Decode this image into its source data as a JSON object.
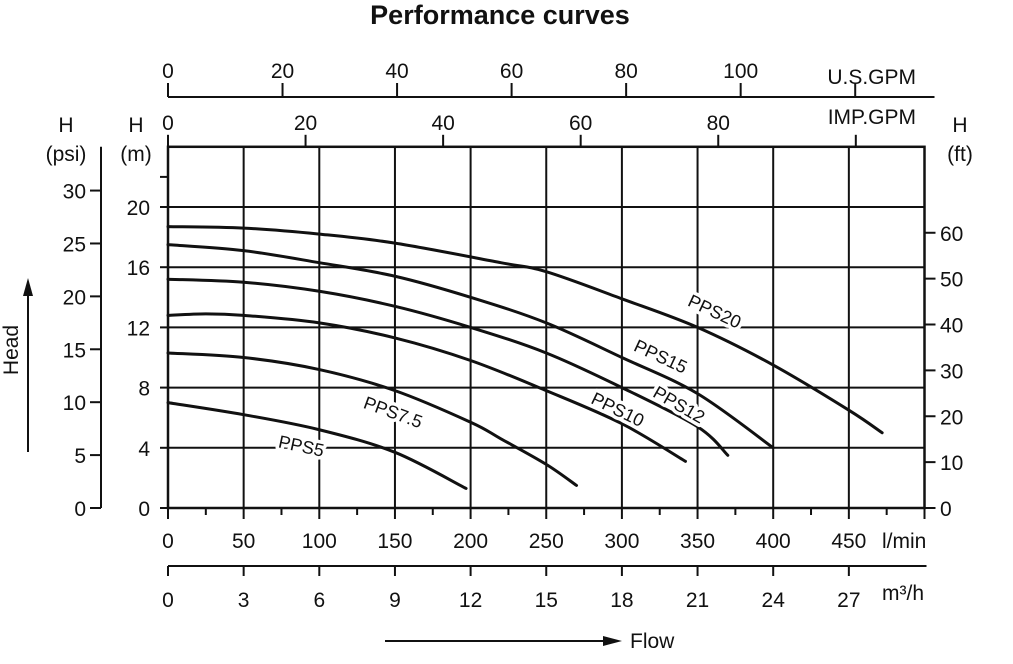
{
  "chart_data": {
    "type": "line",
    "title": "Performance curves",
    "xlabel": "Flow",
    "ylabel": "Head",
    "x_unit": "l/min",
    "xlim": [
      0,
      500
    ],
    "ylim": [
      0,
      24
    ],
    "grid": true,
    "x_ticks": [
      0,
      50,
      100,
      150,
      200,
      250,
      300,
      350,
      400,
      450
    ],
    "y_ticks_m": [
      0,
      4,
      8,
      12,
      16,
      20
    ],
    "axes": {
      "psi": {
        "label": "H",
        "unit": "(psi)",
        "ticks": [
          0,
          5,
          10,
          15,
          20,
          25,
          30
        ]
      },
      "m": {
        "label": "H",
        "unit": "(m)"
      },
      "ft": {
        "label": "H",
        "unit": "(ft)",
        "ticks": [
          0,
          10,
          20,
          30,
          40,
          50,
          60
        ]
      },
      "us_gpm": {
        "label": "U.S.GPM",
        "ticks": [
          0,
          20,
          40,
          60,
          80,
          100
        ]
      },
      "imp_gpm": {
        "label": "IMP.GPM",
        "ticks": [
          0,
          20,
          40,
          60,
          80
        ]
      },
      "lmin": {
        "label": "l/min"
      },
      "m3h": {
        "label": "m³/h",
        "ticks": [
          0,
          3,
          6,
          9,
          12,
          15,
          18,
          21,
          24,
          27
        ]
      }
    },
    "series": [
      {
        "name": "PPS5",
        "x": [
          0,
          50,
          100,
          150,
          197
        ],
        "y": [
          7.0,
          6.2,
          5.2,
          3.7,
          1.3
        ]
      },
      {
        "name": "PPS7.5",
        "x": [
          0,
          50,
          100,
          150,
          200,
          220,
          250,
          270
        ],
        "y": [
          10.3,
          10.0,
          9.2,
          7.8,
          5.7,
          4.6,
          2.9,
          1.5
        ]
      },
      {
        "name": "PPS10",
        "x": [
          0,
          25,
          50,
          100,
          150,
          200,
          250,
          300,
          342
        ],
        "y": [
          12.8,
          12.9,
          12.8,
          12.3,
          11.3,
          9.8,
          7.8,
          5.6,
          3.1
        ]
      },
      {
        "name": "PPS12",
        "x": [
          0,
          50,
          100,
          150,
          200,
          250,
          300,
          350,
          370
        ],
        "y": [
          15.2,
          15.0,
          14.4,
          13.4,
          12.0,
          10.3,
          8.0,
          5.4,
          3.5
        ]
      },
      {
        "name": "PPS15",
        "x": [
          0,
          50,
          100,
          150,
          200,
          250,
          300,
          350,
          400
        ],
        "y": [
          17.5,
          17.1,
          16.3,
          15.4,
          14.0,
          12.3,
          10.0,
          7.6,
          4.0
        ]
      },
      {
        "name": "PPS20",
        "x": [
          0,
          50,
          100,
          150,
          220,
          250,
          300,
          350,
          400,
          450,
          472
        ],
        "y": [
          18.7,
          18.6,
          18.2,
          17.6,
          16.3,
          15.7,
          13.9,
          12.0,
          9.5,
          6.5,
          5.0
        ]
      }
    ]
  }
}
